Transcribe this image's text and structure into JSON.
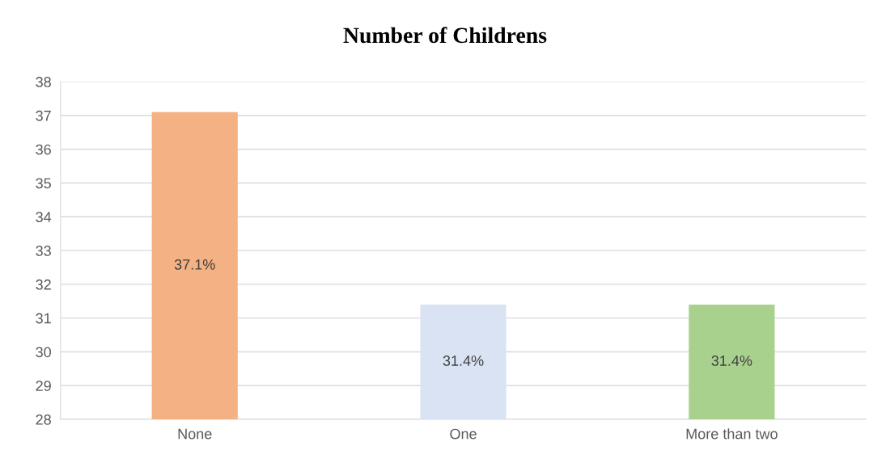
{
  "chart_data": {
    "type": "bar",
    "title": "Number of Childrens",
    "categories": [
      "None",
      "One",
      "More than two"
    ],
    "values": [
      37.1,
      31.4,
      31.4
    ],
    "colors": [
      "#f4b183",
      "#dae3f3",
      "#a9d18e"
    ],
    "value_labels": [
      "37.1%",
      "31.4%",
      "31.4%"
    ],
    "ylim": [
      28,
      38
    ],
    "yticks": [
      28,
      29,
      30,
      31,
      32,
      33,
      34,
      35,
      36,
      37,
      38
    ],
    "grid": "y"
  }
}
